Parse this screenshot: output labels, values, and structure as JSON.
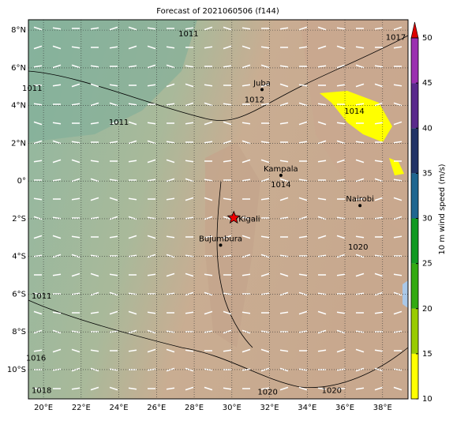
{
  "title": "Forecast of 2021060506 (f144)",
  "map": {
    "lon_range": [
      19.2,
      39.35
    ],
    "lat_range": [
      -11.55,
      8.55
    ],
    "lon_ticks": [
      {
        "value": 20,
        "label": "20°E"
      },
      {
        "value": 22,
        "label": "22°E"
      },
      {
        "value": 24,
        "label": "24°E"
      },
      {
        "value": 26,
        "label": "26°E"
      },
      {
        "value": 28,
        "label": "28°E"
      },
      {
        "value": 30,
        "label": "30°E"
      },
      {
        "value": 32,
        "label": "32°E"
      },
      {
        "value": 34,
        "label": "34°E"
      },
      {
        "value": 36,
        "label": "36°E"
      },
      {
        "value": 38,
        "label": "38°E"
      }
    ],
    "lat_ticks": [
      {
        "value": 8,
        "label": "8°N"
      },
      {
        "value": 6,
        "label": "6°N"
      },
      {
        "value": 4,
        "label": "4°N"
      },
      {
        "value": 2,
        "label": "2°N"
      },
      {
        "value": 0,
        "label": "0°"
      },
      {
        "value": -2,
        "label": "2°S"
      },
      {
        "value": -4,
        "label": "4°S"
      },
      {
        "value": -6,
        "label": "6°S"
      },
      {
        "value": -8,
        "label": "8°S"
      },
      {
        "value": -10,
        "label": "10°S"
      }
    ],
    "grid": true,
    "cities": [
      {
        "name": "Juba",
        "lon": 31.6,
        "lat": 4.85
      },
      {
        "name": "Kampala",
        "lon": 32.6,
        "lat": 0.3
      },
      {
        "name": "Kigali",
        "lon": 30.1,
        "lat": -1.95
      },
      {
        "name": "Bujumbura",
        "lon": 29.4,
        "lat": -3.4
      },
      {
        "name": "Nairobi",
        "lon": 36.8,
        "lat": -1.3
      }
    ],
    "highlight_city": "Kigali",
    "isobar_labels": [
      {
        "text": "1011",
        "lon": 27.7,
        "lat": 7.8
      },
      {
        "text": "1011",
        "lon": 19.4,
        "lat": 4.9
      },
      {
        "text": "1011",
        "lon": 24.0,
        "lat": 3.1
      },
      {
        "text": "1012",
        "lon": 31.2,
        "lat": 4.3
      },
      {
        "text": "1014",
        "lon": 36.5,
        "lat": 3.7
      },
      {
        "text": "1017",
        "lon": 38.7,
        "lat": 7.6
      },
      {
        "text": "1014",
        "lon": 32.6,
        "lat": -0.2
      },
      {
        "text": "1011",
        "lon": 19.9,
        "lat": -6.1
      },
      {
        "text": "1016",
        "lon": 19.6,
        "lat": -9.4
      },
      {
        "text": "1018",
        "lon": 19.9,
        "lat": -11.1
      },
      {
        "text": "1020",
        "lon": 36.7,
        "lat": -3.5
      },
      {
        "text": "1020",
        "lon": 35.3,
        "lat": -11.1
      },
      {
        "text": "1020",
        "lon": 31.9,
        "lat": -11.2
      }
    ]
  },
  "colorbar": {
    "label": "10 m wind speed (m/s)",
    "range": [
      10,
      50
    ],
    "ticks": [
      10,
      15,
      20,
      25,
      30,
      35,
      40,
      45,
      50
    ],
    "colors": [
      "#ffff00",
      "#99cc00",
      "#33aa11",
      "#119922",
      "#1f6690",
      "#223366",
      "#5a2a8c",
      "#9b30b0"
    ],
    "extend_color": "#dd0000"
  }
}
